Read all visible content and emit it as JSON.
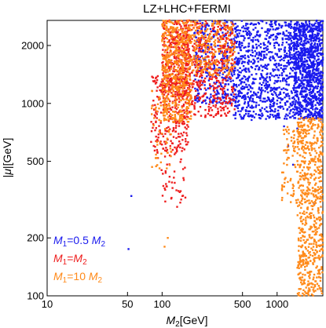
{
  "chart_data": {
    "type": "scatter",
    "title": "LZ+LHC+FERMI",
    "xlabel": "M2[GeV]",
    "ylabel": "|μ|[GeV]",
    "xscale": "log",
    "yscale": "log",
    "xlim": [
      10,
      2500
    ],
    "ylim": [
      100,
      2700
    ],
    "x_ticks": [
      {
        "value": 10,
        "label": "10"
      },
      {
        "value": 50,
        "label": "50"
      },
      {
        "value": 100,
        "label": "100"
      },
      {
        "value": 500,
        "label": "500"
      },
      {
        "value": 1000,
        "label": "1000"
      }
    ],
    "y_ticks": [
      {
        "value": 100,
        "label": "100"
      },
      {
        "value": 200,
        "label": "200"
      },
      {
        "value": 500,
        "label": "500"
      },
      {
        "value": 1000,
        "label": "1000"
      },
      {
        "value": 2000,
        "label": "2000"
      }
    ],
    "legend_position": "bottom-left",
    "series": [
      {
        "name": "M1=0.5 M2",
        "legend": {
          "prefix": "M",
          "sub": "1",
          "mid": "=0.5 ",
          "var": "M",
          "sub2": "2"
        },
        "color": "#1a1aee",
        "regions": [
          {
            "x": [
              430,
              2500
            ],
            "y": [
              830,
              2700
            ],
            "count": 1300
          },
          {
            "x": [
              190,
              430
            ],
            "y": [
              1000,
              2700
            ],
            "count": 350
          },
          {
            "x": [
              1400,
              2500
            ],
            "y": [
              820,
              2600
            ],
            "count": 550
          }
        ],
        "points": [
          [
            54,
            330
          ],
          [
            51,
            175
          ],
          [
            420,
            870
          ],
          [
            560,
            860
          ],
          [
            800,
            830
          ],
          [
            1150,
            760
          ],
          [
            1500,
            740
          ],
          [
            1250,
            600
          ],
          [
            1380,
            480
          ],
          [
            980,
            850
          ],
          [
            1700,
            420
          ],
          [
            2100,
            300
          ],
          [
            600,
            820
          ]
        ]
      },
      {
        "name": "M1=M2",
        "legend": {
          "prefix": "M",
          "sub": "1",
          "mid": "=",
          "var": "M",
          "sub2": "2"
        },
        "color": "#ee1e1e",
        "regions": [
          {
            "x": [
              100,
              175
            ],
            "y": [
              1100,
              2700
            ],
            "count": 350
          },
          {
            "x": [
              80,
              170
            ],
            "y": [
              550,
              1400
            ],
            "count": 250
          },
          {
            "x": [
              150,
              430
            ],
            "y": [
              850,
              2700
            ],
            "count": 500
          },
          {
            "x": [
              100,
              160
            ],
            "y": [
              300,
              600
            ],
            "count": 40
          }
        ],
        "points": [
          [
            135,
            290
          ],
          [
            120,
            320
          ],
          [
            145,
            350
          ],
          [
            110,
            370
          ],
          [
            150,
            330
          ],
          [
            99,
            450
          ],
          [
            92,
            520
          ]
        ]
      },
      {
        "name": "M1=10 M2",
        "legend": {
          "prefix": "M",
          "sub": "1",
          "mid": "=10 ",
          "var": "M",
          "sub2": "2"
        },
        "color": "#ff8a1a",
        "regions": [
          {
            "x": [
              100,
              180
            ],
            "y": [
              800,
              2700
            ],
            "count": 500
          },
          {
            "x": [
              180,
              430
            ],
            "y": [
              1400,
              2700
            ],
            "count": 220
          },
          {
            "x": [
              80,
              120
            ],
            "y": [
              450,
              1200
            ],
            "count": 50
          },
          {
            "x": [
              1500,
              2500
            ],
            "y": [
              100,
              850
            ],
            "count": 650
          },
          {
            "x": [
              1100,
              1600
            ],
            "y": [
              300,
              800
            ],
            "count": 80
          }
        ],
        "points": [
          [
            112,
            200
          ],
          [
            105,
            180
          ],
          [
            95,
            460
          ],
          [
            88,
            520
          ]
        ]
      }
    ]
  }
}
